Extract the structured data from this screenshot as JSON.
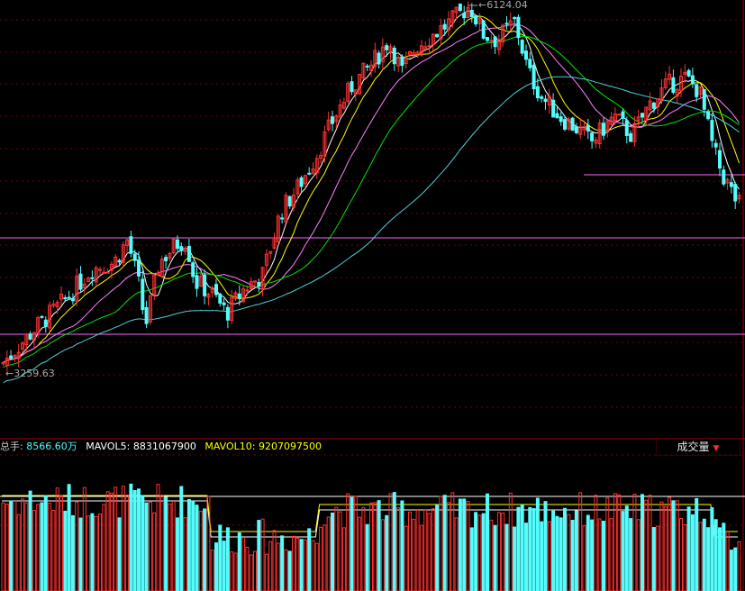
{
  "colors": {
    "up": "#ff3232",
    "down": "#54fcfc",
    "ma5": "#ffffff",
    "ma10": "#ffff00",
    "ma20": "#ff80ff",
    "ma30": "#00e600",
    "ma60": "#4fd0d8",
    "grid": "#7a0000",
    "support_line": "#ff66ff"
  },
  "price_panel": {
    "high_label": "6124.04",
    "low_label": "3259.63"
  },
  "volume_panel": {
    "total_label": "总手:",
    "total_value": "8566.60万",
    "mavol5_label": "MAVOL5:",
    "mavol5_value": "8831067900",
    "mavol10_label": "MAVOL10:",
    "mavol10_value": "9207097500",
    "indicator_label": "成交量",
    "indicator_icon": "caret-down-icon"
  },
  "chart_data": {
    "type": "candlestick",
    "price_high": 6124.04,
    "price_low": 3259.63,
    "note_series": "price ranges from 3259.63 (low, left) to 6124.04 (peak, middle) then declines toward ~4500 at right"
  }
}
